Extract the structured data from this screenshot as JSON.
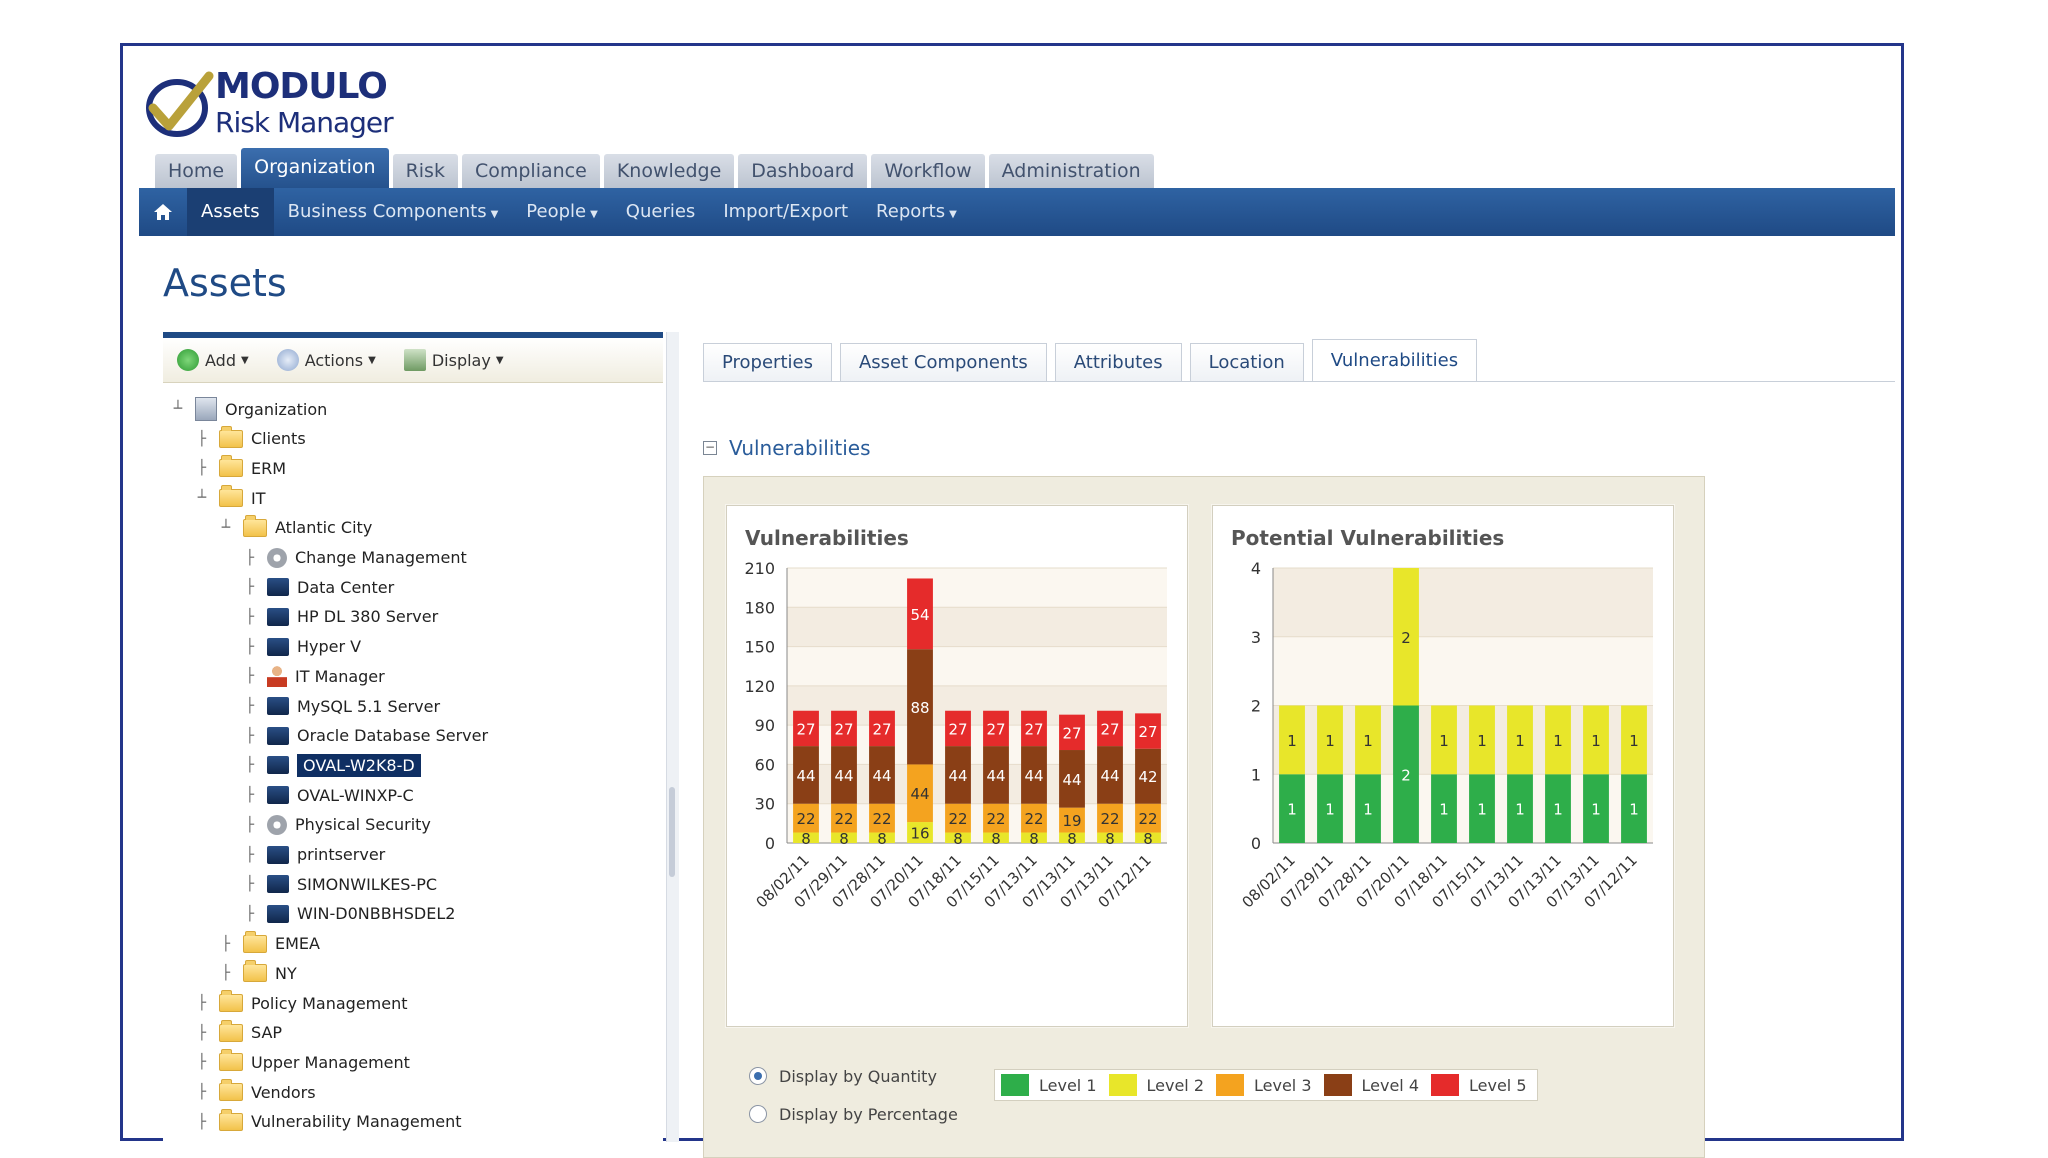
{
  "app": {
    "logo_line1": "MODULO",
    "logo_line2": "Risk Manager"
  },
  "main_nav": [
    {
      "label": "Home",
      "active": false
    },
    {
      "label": "Organization",
      "active": true
    },
    {
      "label": "Risk",
      "active": false
    },
    {
      "label": "Compliance",
      "active": false
    },
    {
      "label": "Knowledge",
      "active": false
    },
    {
      "label": "Dashboard",
      "active": false
    },
    {
      "label": "Workflow",
      "active": false
    },
    {
      "label": "Administration",
      "active": false
    }
  ],
  "sub_nav": [
    {
      "label": "Assets",
      "active": true,
      "dropdown": false
    },
    {
      "label": "Business Components",
      "active": false,
      "dropdown": true
    },
    {
      "label": "People",
      "active": false,
      "dropdown": true
    },
    {
      "label": "Queries",
      "active": false,
      "dropdown": false
    },
    {
      "label": "Import/Export",
      "active": false,
      "dropdown": false
    },
    {
      "label": "Reports",
      "active": false,
      "dropdown": true
    }
  ],
  "page_title": "Assets",
  "toolbar": {
    "add": "Add",
    "actions": "Actions",
    "display": "Display"
  },
  "tree": [
    {
      "label": "Organization",
      "depth": 0,
      "icon": "organization-icon",
      "expanded": true
    },
    {
      "label": "Clients",
      "depth": 1,
      "icon": "folder-icon"
    },
    {
      "label": "ERM",
      "depth": 1,
      "icon": "folder-icon"
    },
    {
      "label": "IT",
      "depth": 1,
      "icon": "folder-icon",
      "expanded": true
    },
    {
      "label": "Atlantic City",
      "depth": 2,
      "icon": "folder-icon",
      "expanded": true
    },
    {
      "label": "Change Management",
      "depth": 3,
      "icon": "gear-icon"
    },
    {
      "label": "Data Center",
      "depth": 3,
      "icon": "server-icon"
    },
    {
      "label": "HP DL 380 Server",
      "depth": 3,
      "icon": "server-icon"
    },
    {
      "label": "Hyper V",
      "depth": 3,
      "icon": "server-icon"
    },
    {
      "label": "IT Manager",
      "depth": 3,
      "icon": "person-icon"
    },
    {
      "label": "MySQL 5.1 Server",
      "depth": 3,
      "icon": "server-icon"
    },
    {
      "label": "Oracle Database Server",
      "depth": 3,
      "icon": "server-icon"
    },
    {
      "label": "OVAL-W2K8-D",
      "depth": 3,
      "icon": "server-icon",
      "selected": true
    },
    {
      "label": "OVAL-WINXP-C",
      "depth": 3,
      "icon": "server-icon"
    },
    {
      "label": "Physical Security",
      "depth": 3,
      "icon": "gear-icon"
    },
    {
      "label": "printserver",
      "depth": 3,
      "icon": "server-icon"
    },
    {
      "label": "SIMONWILKES-PC",
      "depth": 3,
      "icon": "server-icon"
    },
    {
      "label": "WIN-D0NBBHSDEL2",
      "depth": 3,
      "icon": "server-icon"
    },
    {
      "label": "EMEA",
      "depth": 2,
      "icon": "folder-icon"
    },
    {
      "label": "NY",
      "depth": 2,
      "icon": "folder-icon"
    },
    {
      "label": "Policy Management",
      "depth": 1,
      "icon": "folder-icon"
    },
    {
      "label": "SAP",
      "depth": 1,
      "icon": "folder-icon"
    },
    {
      "label": "Upper Management",
      "depth": 1,
      "icon": "folder-icon"
    },
    {
      "label": "Vendors",
      "depth": 1,
      "icon": "folder-icon"
    },
    {
      "label": "Vulnerability Management",
      "depth": 1,
      "icon": "folder-icon"
    }
  ],
  "tabs": [
    {
      "label": "Properties",
      "active": false
    },
    {
      "label": "Asset Components",
      "active": false
    },
    {
      "label": "Attributes",
      "active": false
    },
    {
      "label": "Location",
      "active": false
    },
    {
      "label": "Vulnerabilities",
      "active": true
    }
  ],
  "section_title": "Vulnerabilities",
  "display_options": {
    "quantity": "Display by Quantity",
    "percentage": "Display by Percentage",
    "selected": "quantity"
  },
  "colors": {
    "level1": "#2eae4a",
    "level2": "#e8e62a",
    "level3": "#f4a31f",
    "level4": "#8a3f16",
    "level5": "#e52b2b"
  },
  "chart_data": [
    {
      "type": "bar",
      "stacked": true,
      "title": "Vulnerabilities",
      "categories": [
        "08/02/11",
        "07/29/11",
        "07/28/11",
        "07/20/11",
        "07/18/11",
        "07/15/11",
        "07/13/11",
        "07/13/11",
        "07/13/11",
        "07/12/11"
      ],
      "ylim": [
        0,
        210
      ],
      "yticks": [
        0,
        30,
        60,
        90,
        120,
        150,
        180,
        210
      ],
      "series": [
        {
          "name": "Level 2",
          "values": [
            8,
            8,
            8,
            16,
            8,
            8,
            8,
            8,
            8,
            8
          ]
        },
        {
          "name": "Level 3",
          "values": [
            22,
            22,
            22,
            44,
            22,
            22,
            22,
            19,
            22,
            22
          ]
        },
        {
          "name": "Level 4",
          "values": [
            44,
            44,
            44,
            88,
            44,
            44,
            44,
            44,
            44,
            42
          ]
        },
        {
          "name": "Level 5",
          "values": [
            27,
            27,
            27,
            54,
            27,
            27,
            27,
            27,
            27,
            27
          ]
        }
      ]
    },
    {
      "type": "bar",
      "stacked": true,
      "title": "Potential Vulnerabilities",
      "categories": [
        "08/02/11",
        "07/29/11",
        "07/28/11",
        "07/20/11",
        "07/18/11",
        "07/15/11",
        "07/13/11",
        "07/13/11",
        "07/13/11",
        "07/12/11"
      ],
      "ylim": [
        0,
        4
      ],
      "yticks": [
        0,
        1,
        2,
        3,
        4
      ],
      "series": [
        {
          "name": "Level 1",
          "values": [
            1,
            1,
            1,
            2,
            1,
            1,
            1,
            1,
            1,
            1
          ]
        },
        {
          "name": "Level 2",
          "values": [
            1,
            1,
            1,
            2,
            1,
            1,
            1,
            1,
            1,
            1
          ]
        }
      ]
    }
  ],
  "legend": [
    "Level 1",
    "Level 2",
    "Level 3",
    "Level 4",
    "Level 5"
  ]
}
